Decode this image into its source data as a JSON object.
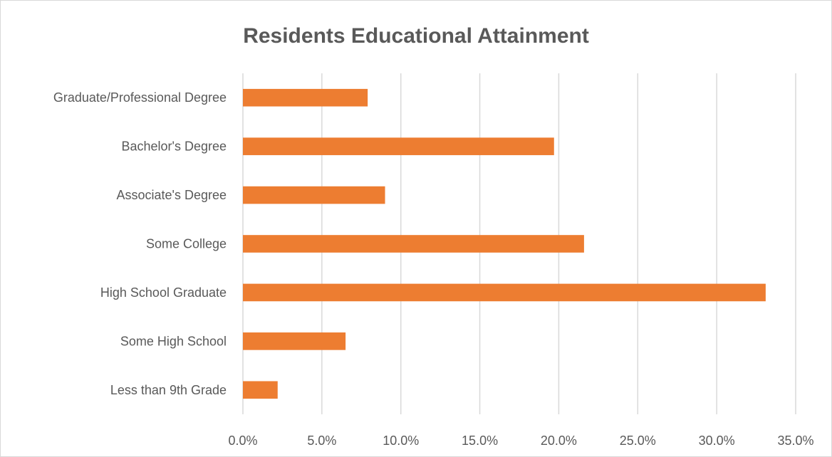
{
  "chart_data": {
    "type": "bar",
    "orientation": "horizontal",
    "title": "Residents Educational Attainment",
    "xlabel": "",
    "ylabel": "",
    "categories": [
      "Graduate/Professional Degree",
      "Bachelor's Degree",
      "Associate's Degree",
      "Some College",
      "High School Graduate",
      "Some High School",
      "Less than 9th Grade"
    ],
    "values": [
      7.9,
      19.7,
      9.0,
      21.6,
      33.1,
      6.5,
      2.2
    ],
    "value_unit": "percent",
    "xlim": [
      0,
      35
    ],
    "x_ticks": [
      "0.0%",
      "5.0%",
      "10.0%",
      "15.0%",
      "20.0%",
      "25.0%",
      "30.0%",
      "35.0%"
    ],
    "grid": "vertical",
    "legend": "none",
    "bar_color": "#ED7D31"
  }
}
